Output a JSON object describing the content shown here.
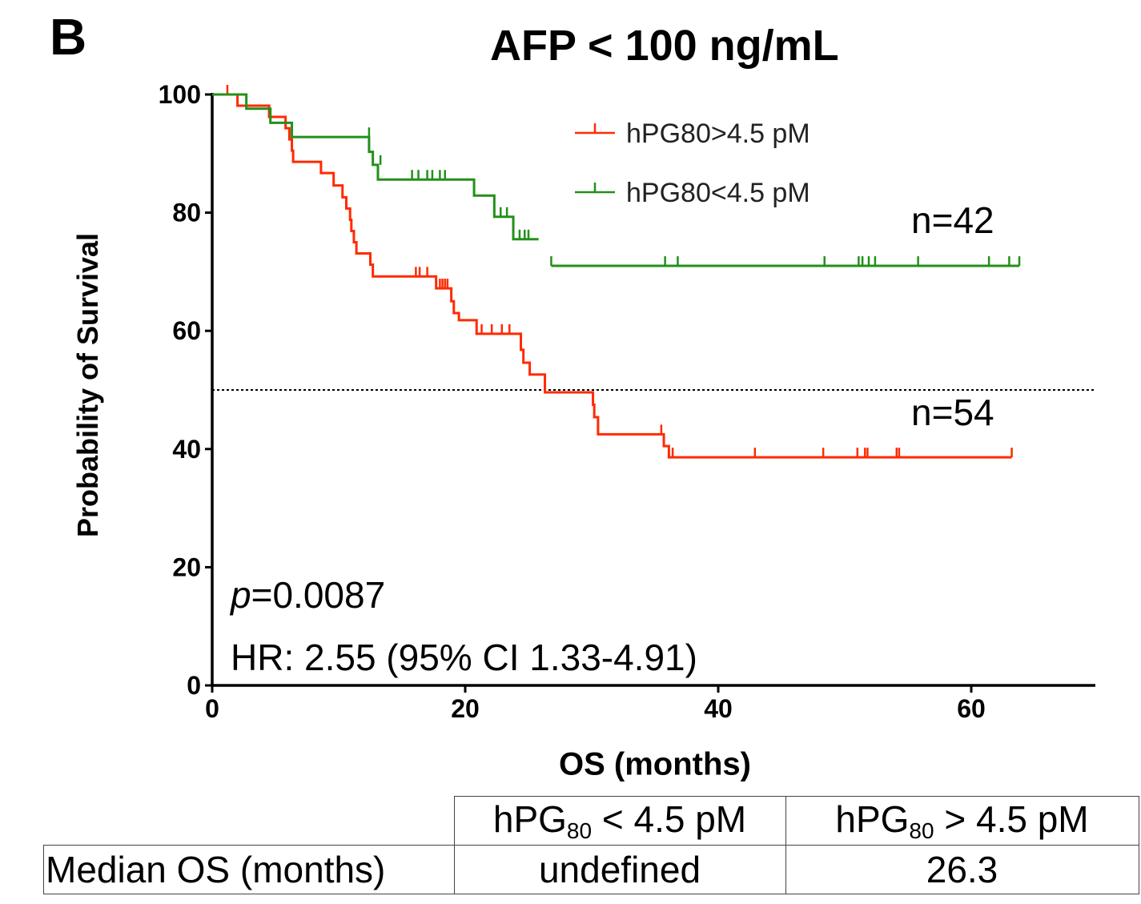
{
  "panel_letter": "B",
  "chart_data": {
    "type": "line",
    "title": "AFP < 100 ng/mL",
    "xlabel": "OS (months)",
    "ylabel": "Probability of Survival",
    "xlim": [
      0,
      70
    ],
    "ylim": [
      0,
      100
    ],
    "xticks": [
      0,
      20,
      40,
      60
    ],
    "yticks": [
      0,
      20,
      40,
      60,
      80,
      100
    ],
    "median_line": 50,
    "series": [
      {
        "name": "hPG80>4.5 pM",
        "color": "#ff2a00",
        "n_label": "n=54",
        "steps": [
          [
            0,
            100
          ],
          [
            2,
            100
          ],
          [
            2,
            98.1
          ],
          [
            4.5,
            98.1
          ],
          [
            4.5,
            96.2
          ],
          [
            5.8,
            96.2
          ],
          [
            5.8,
            94.3
          ],
          [
            6.1,
            94.3
          ],
          [
            6.1,
            92.4
          ],
          [
            6.3,
            92.4
          ],
          [
            6.3,
            90.5
          ],
          [
            6.4,
            90.5
          ],
          [
            6.4,
            88.6
          ],
          [
            8.6,
            88.6
          ],
          [
            8.6,
            86.7
          ],
          [
            9.6,
            86.7
          ],
          [
            9.6,
            84.6
          ],
          [
            10.3,
            84.6
          ],
          [
            10.3,
            82.6
          ],
          [
            10.6,
            82.6
          ],
          [
            10.6,
            80.7
          ],
          [
            10.9,
            80.7
          ],
          [
            10.9,
            78.8
          ],
          [
            11.0,
            78.8
          ],
          [
            11.0,
            76.9
          ],
          [
            11.2,
            76.9
          ],
          [
            11.2,
            75
          ],
          [
            11.4,
            75
          ],
          [
            11.4,
            73.1
          ],
          [
            12.5,
            73.1
          ],
          [
            12.5,
            71.2
          ],
          [
            12.7,
            71.2
          ],
          [
            12.7,
            69.2
          ],
          [
            17.7,
            69.2
          ],
          [
            17.7,
            67.2
          ],
          [
            18.9,
            67.2
          ],
          [
            18.9,
            65
          ],
          [
            19.1,
            65
          ],
          [
            19.1,
            63
          ],
          [
            19.5,
            63
          ],
          [
            19.5,
            61.8
          ],
          [
            20.9,
            61.8
          ],
          [
            20.9,
            59.5
          ],
          [
            24.4,
            59.5
          ],
          [
            24.4,
            56.8
          ],
          [
            24.6,
            56.8
          ],
          [
            24.6,
            54.6
          ],
          [
            25.1,
            54.6
          ],
          [
            25.1,
            52.6
          ],
          [
            26.3,
            52.6
          ],
          [
            26.3,
            49.6
          ],
          [
            30.1,
            49.6
          ],
          [
            30.1,
            47.5
          ],
          [
            30.2,
            47.5
          ],
          [
            30.2,
            45.4
          ],
          [
            30.5,
            45.4
          ],
          [
            30.5,
            42.5
          ],
          [
            35.7,
            42.5
          ],
          [
            35.7,
            40.5
          ],
          [
            36.1,
            40.5
          ],
          [
            36.1,
            38.6
          ],
          [
            63.2,
            38.6
          ]
        ],
        "censors": [
          [
            1.2,
            100
          ],
          [
            16.1,
            69.2
          ],
          [
            16.4,
            69.2
          ],
          [
            17.0,
            69.2
          ],
          [
            18.0,
            67.2
          ],
          [
            18.2,
            67.2
          ],
          [
            18.4,
            67.2
          ],
          [
            18.6,
            67.2
          ],
          [
            20.9,
            59.5
          ],
          [
            21.3,
            59.5
          ],
          [
            22.1,
            59.5
          ],
          [
            22.9,
            59.5
          ],
          [
            23.5,
            59.5
          ],
          [
            35.5,
            42.5
          ],
          [
            36.4,
            38.6
          ],
          [
            42.9,
            38.6
          ],
          [
            48.3,
            38.6
          ],
          [
            51.0,
            38.6
          ],
          [
            51.6,
            38.6
          ],
          [
            51.8,
            38.6
          ],
          [
            54.1,
            38.6
          ],
          [
            54.3,
            38.6
          ],
          [
            63.2,
            38.6
          ]
        ]
      },
      {
        "name": "hPG80<4.5 pM",
        "color": "#22901a",
        "n_label": "n=42",
        "steps": [
          [
            0,
            100
          ],
          [
            2.7,
            100
          ],
          [
            2.7,
            97.6
          ],
          [
            4.6,
            97.6
          ],
          [
            4.6,
            95.2
          ],
          [
            6.3,
            95.2
          ],
          [
            6.3,
            92.8
          ],
          [
            12.4,
            92.8
          ],
          [
            12.4,
            90.3
          ],
          [
            12.7,
            90.3
          ],
          [
            12.7,
            88.1
          ],
          [
            13.1,
            88.1
          ],
          [
            13.1,
            85.6
          ],
          [
            20.7,
            85.6
          ],
          [
            20.7,
            82.9
          ],
          [
            22.3,
            82.9
          ],
          [
            22.3,
            79.3
          ],
          [
            23.8,
            79.3
          ],
          [
            23.8,
            75.5
          ],
          [
            25.8,
            75.5
          ]
        ],
        "censors": [
          [
            12.4,
            92.8
          ],
          [
            13.3,
            88.1
          ],
          [
            15.8,
            85.6
          ],
          [
            16.3,
            85.6
          ],
          [
            17.0,
            85.6
          ],
          [
            17.4,
            85.6
          ],
          [
            18.0,
            85.6
          ],
          [
            18.4,
            85.6
          ],
          [
            22.8,
            79.3
          ],
          [
            23.3,
            79.3
          ],
          [
            24.3,
            75.5
          ],
          [
            24.7,
            75.5
          ],
          [
            25.0,
            75.5
          ],
          [
            26.8,
            71
          ],
          [
            35.8,
            71
          ],
          [
            36.8,
            71
          ],
          [
            48.4,
            71
          ],
          [
            51.1,
            71
          ],
          [
            51.4,
            71
          ],
          [
            51.9,
            71
          ],
          [
            52.4,
            71
          ],
          [
            55.8,
            71
          ],
          [
            61.4,
            71
          ],
          [
            63.0,
            71
          ],
          [
            63.8,
            71
          ]
        ],
        "steps2": [
          [
            26.8,
            71
          ],
          [
            63.8,
            71
          ]
        ]
      }
    ],
    "legend_position": "top-center",
    "annotations": {
      "p_symbol": "p",
      "p_value": "=0.0087",
      "hr": "HR: 2.55 (95% CI 1.33-4.91)"
    }
  },
  "table": {
    "col1_prefix": "hPG",
    "col1_sub": "80",
    "col1_suffix": " < 4.5 pM",
    "col2_prefix": "hPG",
    "col2_sub": "80",
    "col2_suffix": " > 4.5 pM",
    "row_label": "Median OS (months)",
    "val1": "undefined",
    "val2": "26.3"
  }
}
